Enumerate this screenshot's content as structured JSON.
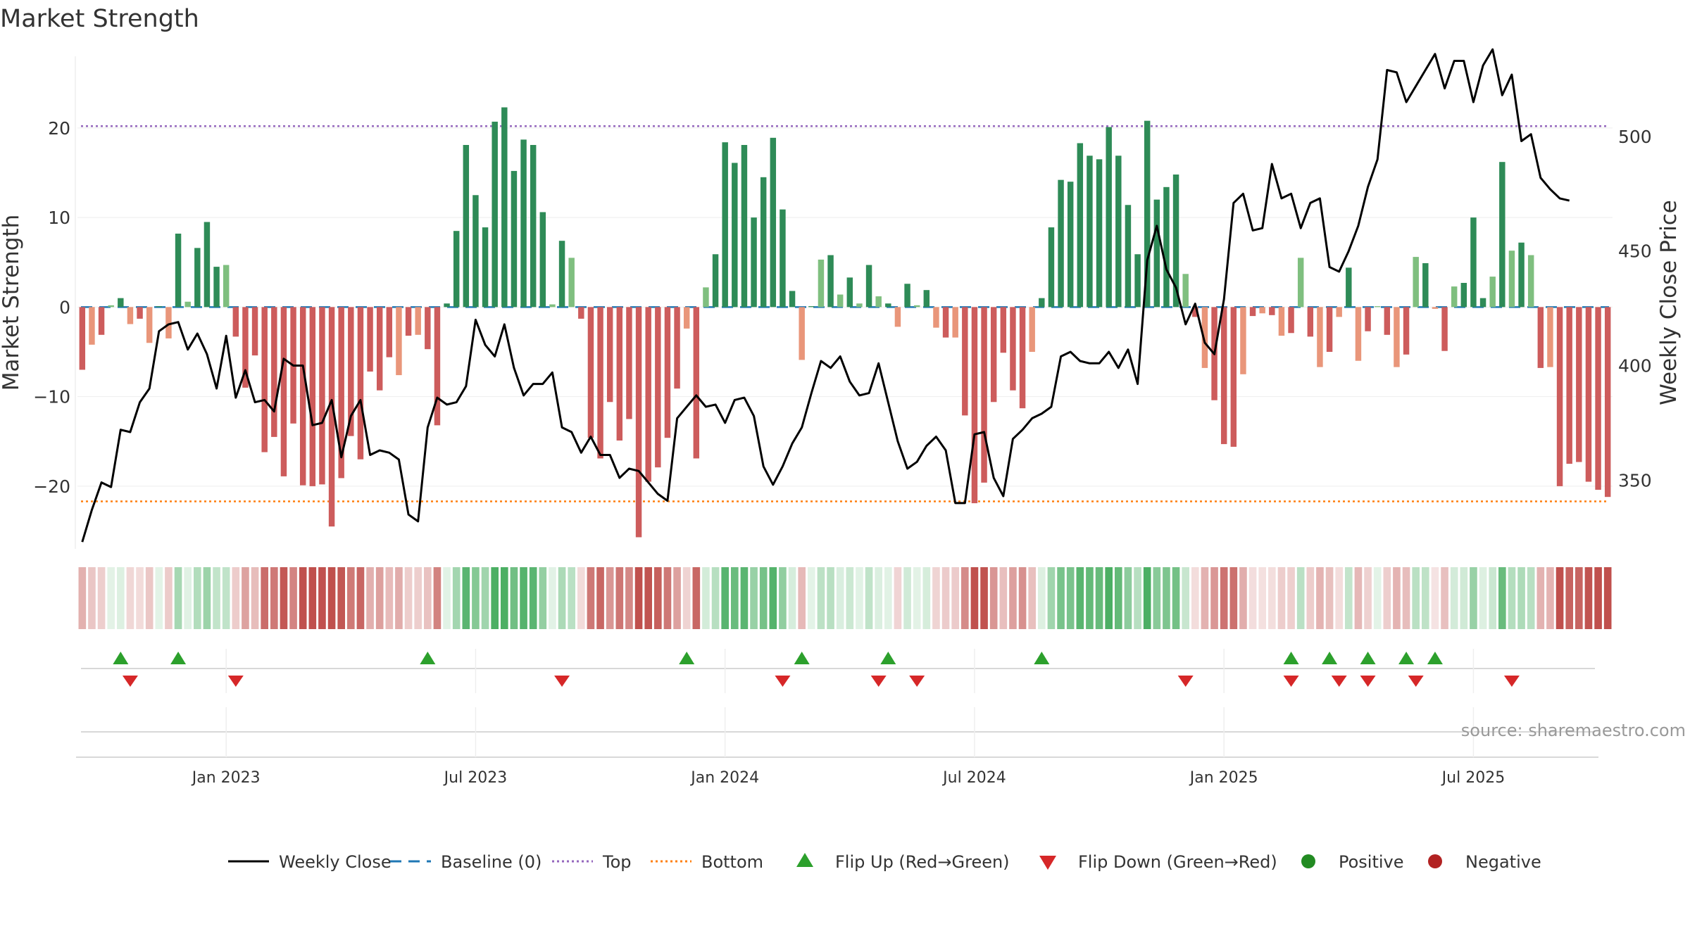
{
  "chart_data": {
    "type": "bar",
    "title": "Market Strength",
    "ylabel": "Market Strength",
    "y2label": "Weekly Close Price",
    "ylim": [
      -27,
      28
    ],
    "y2lim": [
      320,
      535
    ],
    "yticks": [
      20,
      10,
      0,
      -10,
      -20
    ],
    "y2ticks": [
      500,
      450,
      400,
      350
    ],
    "ytick_labels": [
      "20",
      "10",
      "0",
      "−10",
      "−20"
    ],
    "y2tick_labels": [
      "500",
      "450",
      "400",
      "350"
    ],
    "top_level": 20.2,
    "bottom_level": -21.7,
    "x_start": "2022-09-19",
    "x_end": "2025-10-06",
    "date_ticks": [
      {
        "label": "Jan 2023",
        "week": 15
      },
      {
        "label": "Jul 2023",
        "week": 41
      },
      {
        "label": "Jan 2024",
        "week": 67
      },
      {
        "label": "Jul 2024",
        "week": 93
      },
      {
        "label": "Jan 2025",
        "week": 119
      },
      {
        "label": "Jul 2025",
        "week": 145
      }
    ],
    "strength": [
      -7,
      -4.2,
      -3.1,
      0.2,
      1,
      -1.9,
      -1.3,
      -4,
      0.1,
      -3.5,
      8.2,
      0.6,
      6.6,
      9.5,
      4.5,
      4.7,
      -3.3,
      -9,
      -5.4,
      -16.2,
      -14.5,
      -18.9,
      -13,
      -19.9,
      -20,
      -19.8,
      -24.5,
      -19.1,
      -14.4,
      -17,
      -7.2,
      -9.3,
      -5.6,
      -7.6,
      -3.2,
      -3.1,
      -4.7,
      -13.2,
      0.4,
      8.5,
      18.1,
      12.5,
      8.9,
      20.7,
      22.3,
      15.2,
      18.7,
      18.1,
      10.6,
      0.3,
      7.4,
      5.5,
      -1.3,
      -14.6,
      -16.9,
      -10.6,
      -14.9,
      -12.5,
      -25.7,
      -19.5,
      -17.9,
      -14.6,
      -9.1,
      -2.4,
      -16.9,
      2.2,
      5.9,
      18.4,
      16.1,
      18.1,
      10,
      14.5,
      18.9,
      10.9,
      1.8,
      -5.9,
      0.1,
      5.3,
      5.8,
      1.4,
      3.3,
      0.4,
      4.7,
      1.2,
      0.4,
      -2.2,
      2.6,
      0.2,
      1.9,
      -2.3,
      -3.4,
      -3.4,
      -12.1,
      -21.9,
      -19.6,
      -10.6,
      -5.1,
      -9.3,
      -11.3,
      -5,
      1,
      8.9,
      14.2,
      14,
      18.3,
      16.9,
      16.5,
      20.1,
      16.9,
      11.4,
      5.9,
      20.8,
      12,
      13.4,
      14.8,
      3.7,
      -1.1,
      -6.8,
      -10.4,
      -15.3,
      -15.6,
      -7.5,
      -1,
      -0.7,
      -0.9,
      -3.2,
      -2.9,
      5.5,
      -3.3,
      -6.7,
      -5,
      -1.1,
      4.4,
      -6,
      -2.7,
      0.1,
      -3.1,
      -6.7,
      -5.3,
      5.6,
      4.9,
      -0.2,
      -4.9,
      2.3,
      2.7,
      10,
      1,
      3.4,
      16.2,
      6.3,
      7.2,
      5.8,
      -6.8,
      -6.7,
      -20,
      -17.5,
      -17.3,
      -19.5,
      -20.4,
      -21.2
    ],
    "weekly_close": [
      323,
      337,
      349,
      347,
      372,
      371,
      384,
      390,
      415,
      418,
      419,
      407,
      414,
      405,
      390,
      413,
      386,
      398,
      384,
      385,
      380,
      403,
      400,
      400,
      374,
      375,
      385,
      360,
      378,
      385,
      361,
      363,
      362,
      359,
      335,
      332,
      373,
      386,
      383,
      384,
      391,
      420,
      409,
      404,
      418,
      399,
      387,
      392,
      392,
      397,
      373,
      371,
      362,
      369,
      361,
      361,
      351,
      355,
      354,
      349,
      344,
      341,
      377,
      382,
      387,
      382,
      383,
      375,
      385,
      386,
      378,
      356,
      348,
      356,
      366,
      373,
      388,
      402,
      399,
      404,
      393,
      387,
      388,
      401,
      384,
      367,
      355,
      358,
      365,
      369,
      363,
      340,
      340,
      370,
      371,
      351,
      343,
      368,
      372,
      377,
      379,
      382,
      404,
      406,
      402,
      401,
      401,
      406,
      399,
      407,
      392,
      446,
      461,
      442,
      434,
      418,
      427,
      410,
      405,
      429,
      471,
      475,
      459,
      460,
      488,
      473,
      475,
      460,
      471,
      473,
      443,
      441,
      450,
      461,
      478,
      490,
      529,
      528,
      515,
      522,
      529,
      536,
      521,
      533,
      533,
      515,
      531,
      538,
      518,
      527,
      498,
      501,
      482,
      477,
      473,
      472
    ],
    "flip_up_weeks": [
      4,
      10,
      36,
      63,
      75,
      84,
      100,
      126,
      130,
      134,
      138,
      141
    ],
    "flip_down_weeks": [
      5,
      16,
      50,
      73,
      83,
      87,
      115,
      126,
      131,
      134,
      139,
      149
    ],
    "colors": {
      "strong_green": "#2e8b57",
      "light_green": "#7fbf7f",
      "strong_red": "#cd5c5c",
      "light_red": "#e9967a",
      "close_line": "#000000",
      "baseline": "#1f77b4",
      "top_line": "#9467bd",
      "bottom_line": "#ff7f0e",
      "flip_up": "#2ca02c",
      "flip_down": "#d62728",
      "positive": "#228b22",
      "negative": "#b22222"
    },
    "legend": [
      {
        "label": "Weekly Close",
        "kind": "line"
      },
      {
        "label": "Baseline (0)",
        "kind": "dash"
      },
      {
        "label": "Top",
        "kind": "dot-top"
      },
      {
        "label": "Bottom",
        "kind": "dot-bottom"
      },
      {
        "label": "Flip Up (Red→Green)",
        "kind": "tri-up"
      },
      {
        "label": "Flip Down (Green→Red)",
        "kind": "tri-down"
      },
      {
        "label": "Positive",
        "kind": "dot-pos"
      },
      {
        "label": "Negative",
        "kind": "dot-neg"
      }
    ],
    "source": "source: sharemaestro.com"
  }
}
